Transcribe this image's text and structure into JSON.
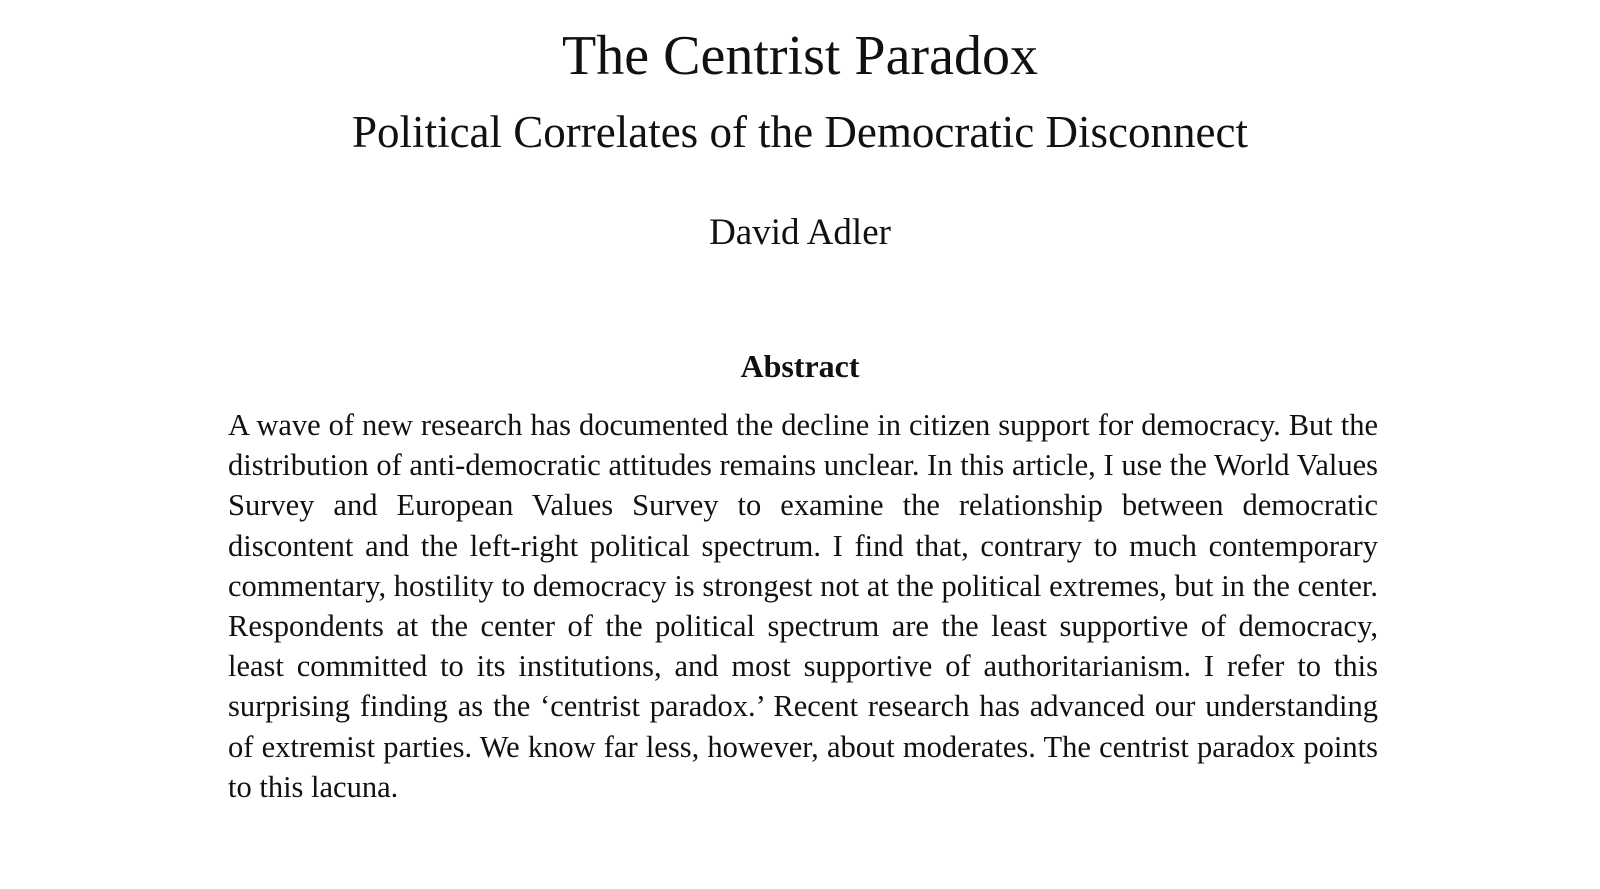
{
  "paper": {
    "title": "The Centrist Paradox",
    "subtitle": "Political Correlates of the Democratic Disconnect",
    "author": "David Adler",
    "abstract_heading": "Abstract",
    "abstract_text": "A wave of new research has documented the decline in citizen support for demo­cracy. But the distribution of anti-democratic attitudes remains unclear. In this article, I use the World Values Survey and European Values Survey to exam­ine the relationship between democratic discontent and the left-right political spectrum. I find that, contrary to much contemporary commentary, hostility to democracy is strongest not at the political extremes, but in the center. Re­spondents at the center of the political spectrum are the least supportive of democracy, least committed to its institutions, and most supportive of author­itarianism. I refer to this surprising finding as the ‘centrist paradox.’ Recent research has advanced our understanding of extremist parties. We know far less, however, about moderates. The centrist paradox points to this lacuna."
  }
}
